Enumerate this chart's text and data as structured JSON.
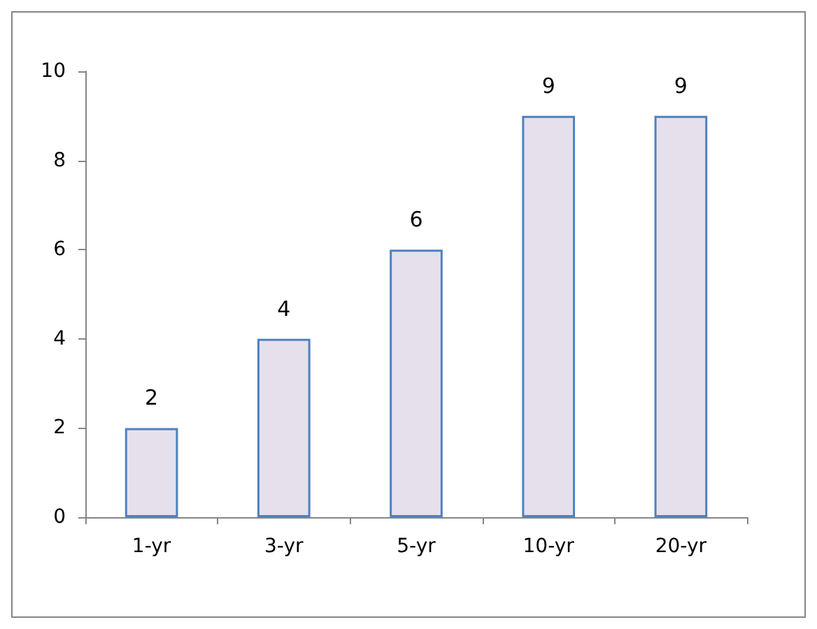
{
  "chart_data": {
    "type": "bar",
    "categories": [
      "1-yr",
      "3-yr",
      "5-yr",
      "10-yr",
      "20-yr"
    ],
    "values": [
      2,
      4,
      6,
      9,
      9
    ],
    "color": "#e6e0ec",
    "data_labels": true,
    "ylim": [
      0,
      10
    ],
    "yticks": [
      0,
      2,
      4,
      6,
      8,
      10
    ],
    "grid": false
  }
}
